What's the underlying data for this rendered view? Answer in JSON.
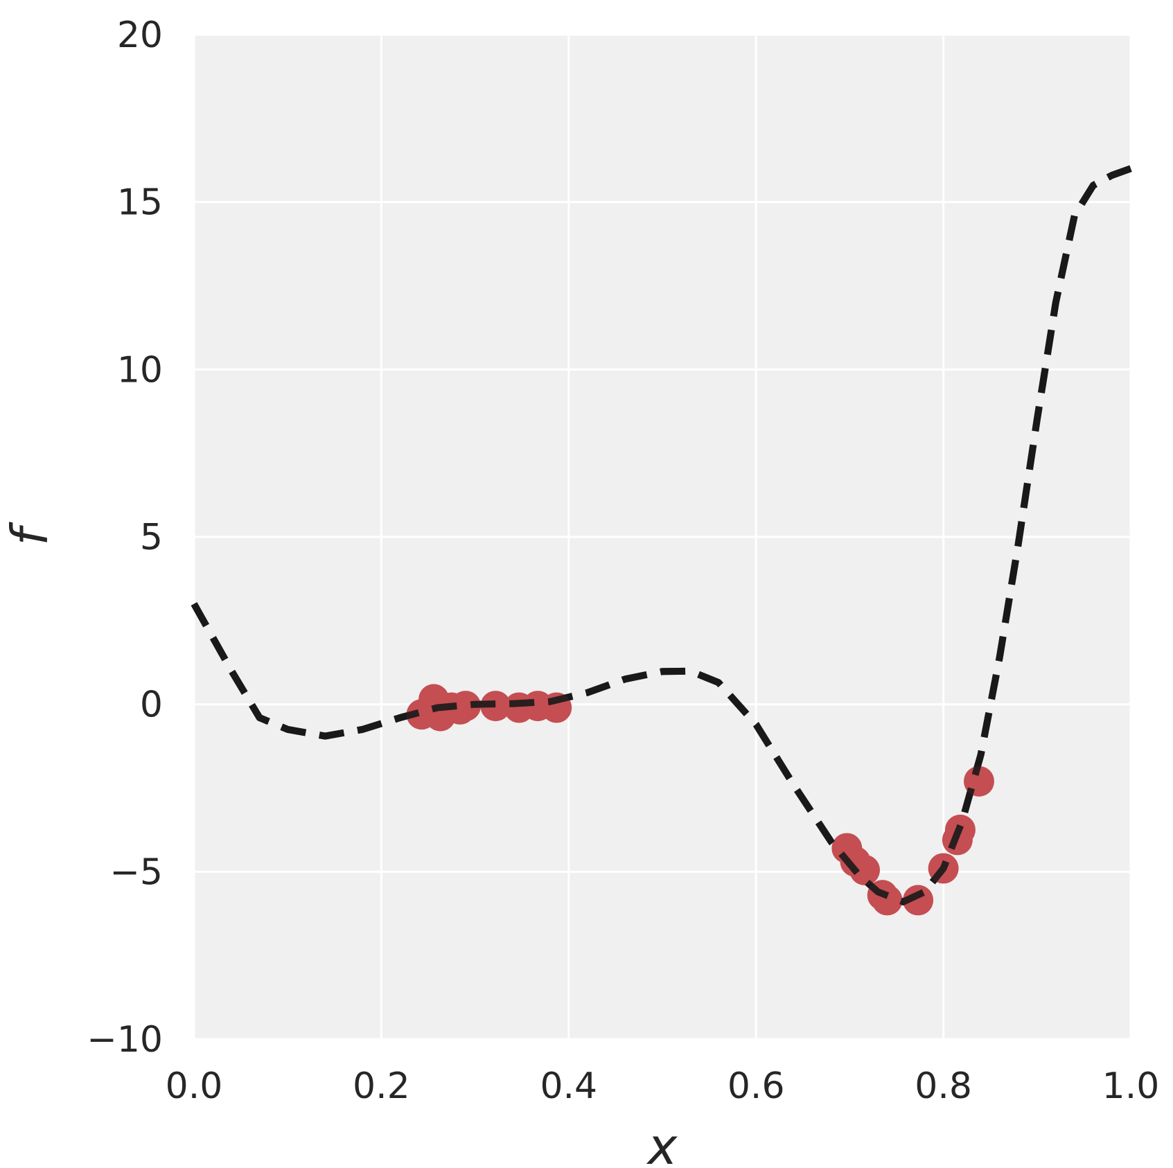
{
  "chart_data": {
    "type": "line",
    "xlabel": "x",
    "ylabel": "f",
    "xlim": [
      0.0,
      1.0
    ],
    "ylim": [
      -10,
      20
    ],
    "xticks": [
      "0.0",
      "0.2",
      "0.4",
      "0.6",
      "0.8",
      "1.0"
    ],
    "yticks": [
      "−10",
      "−5",
      "0",
      "5",
      "10",
      "15",
      "20"
    ],
    "xtick_values": [
      0.0,
      0.2,
      0.4,
      0.6,
      0.8,
      1.0
    ],
    "ytick_values": [
      -10,
      -5,
      0,
      5,
      10,
      15,
      20
    ],
    "grid": true,
    "series": [
      {
        "style": "dashed-line",
        "color": "#1a1a1a",
        "x": [
          0.0,
          0.04,
          0.07,
          0.1,
          0.14,
          0.18,
          0.22,
          0.26,
          0.3,
          0.34,
          0.38,
          0.42,
          0.46,
          0.5,
          0.53,
          0.56,
          0.6,
          0.64,
          0.68,
          0.71,
          0.73,
          0.757,
          0.78,
          0.8,
          0.82,
          0.84,
          0.86,
          0.88,
          0.9,
          0.92,
          0.94,
          0.96,
          0.98,
          1.0
        ],
        "y": [
          3.0,
          1.0,
          -0.4,
          -0.75,
          -0.95,
          -0.75,
          -0.4,
          -0.1,
          0.0,
          0.02,
          0.08,
          0.35,
          0.75,
          0.98,
          0.99,
          0.65,
          -0.6,
          -2.4,
          -4.1,
          -5.1,
          -5.6,
          -5.9,
          -5.6,
          -4.9,
          -3.5,
          -1.5,
          1.4,
          4.8,
          8.5,
          12.0,
          14.6,
          15.5,
          15.8,
          16.0
        ]
      },
      {
        "style": "scatter",
        "color": "#c44e52",
        "x": [
          0.243,
          0.256,
          0.263,
          0.275,
          0.284,
          0.29,
          0.322,
          0.347,
          0.367,
          0.387,
          0.697,
          0.706,
          0.716,
          0.735,
          0.74,
          0.773,
          0.8,
          0.815,
          0.818,
          0.838
        ],
        "y": [
          -0.3,
          0.15,
          -0.35,
          -0.1,
          -0.15,
          -0.05,
          -0.05,
          -0.1,
          -0.05,
          -0.1,
          -4.3,
          -4.7,
          -4.95,
          -5.7,
          -5.85,
          -5.85,
          -4.9,
          -4.05,
          -3.75,
          -2.3
        ]
      }
    ]
  }
}
